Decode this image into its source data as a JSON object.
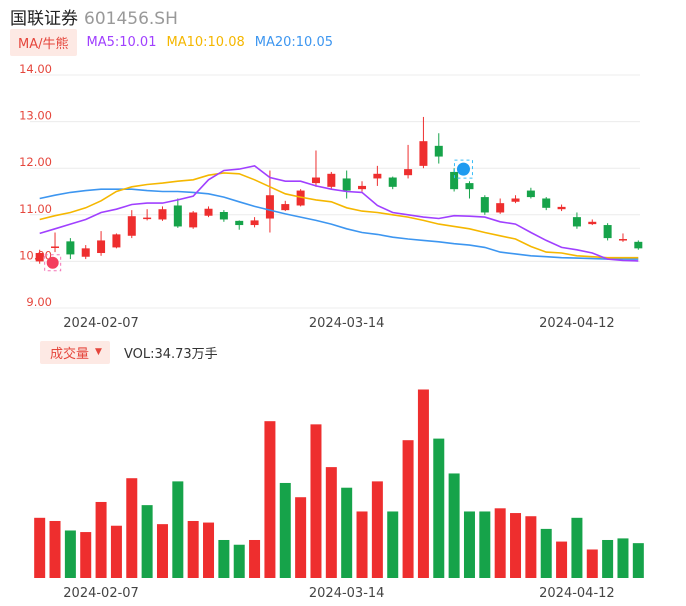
{
  "header": {
    "name": "国联证券",
    "code": "601456.SH"
  },
  "ma_legend": {
    "tag": "MA/牛熊",
    "items": [
      {
        "text": "MA5:10.01",
        "color": "#a040ff"
      },
      {
        "text": "MA10:10.08",
        "color": "#f5b700"
      },
      {
        "text": "MA20:10.05",
        "color": "#3d96f0"
      }
    ]
  },
  "volume_legend": {
    "tag": "成交量",
    "caret": "▼",
    "text": "VOL:34.73万手"
  },
  "colors": {
    "up": "#ee2e2e",
    "down": "#16a34a",
    "grid": "#ececec",
    "axis_label": "#e5463c"
  },
  "icons": [
    "bull-marker-icon",
    "bear-marker-icon"
  ],
  "chart_data": [
    {
      "type": "candlestick",
      "y_ticks": [
        "14.00",
        "13.00",
        "12.00",
        "11.00",
        "10.00",
        "9.00"
      ],
      "ylim": [
        9,
        14
      ],
      "x_tick_labels": [
        {
          "index": 4,
          "label": "2024-02-07"
        },
        {
          "index": 20,
          "label": "2024-03-14"
        },
        {
          "index": 35,
          "label": "2024-04-12"
        }
      ],
      "candles": [
        {
          "o": 10.0,
          "c": 10.18,
          "h": 10.25,
          "l": 9.95
        },
        {
          "o": 10.3,
          "c": 10.32,
          "h": 10.62,
          "l": 10.2
        },
        {
          "o": 10.43,
          "c": 10.15,
          "h": 10.5,
          "l": 10.05
        },
        {
          "o": 10.1,
          "c": 10.28,
          "h": 10.35,
          "l": 10.05
        },
        {
          "o": 10.18,
          "c": 10.45,
          "h": 10.65,
          "l": 10.12
        },
        {
          "o": 10.3,
          "c": 10.58,
          "h": 10.6,
          "l": 10.28
        },
        {
          "o": 10.55,
          "c": 10.97,
          "h": 11.1,
          "l": 10.5
        },
        {
          "o": 10.92,
          "c": 10.94,
          "h": 11.12,
          "l": 10.88
        },
        {
          "o": 10.9,
          "c": 11.12,
          "h": 11.18,
          "l": 10.87
        },
        {
          "o": 11.2,
          "c": 10.75,
          "h": 11.35,
          "l": 10.72
        },
        {
          "o": 10.73,
          "c": 11.05,
          "h": 11.08,
          "l": 10.7
        },
        {
          "o": 10.98,
          "c": 11.13,
          "h": 11.18,
          "l": 10.95
        },
        {
          "o": 11.06,
          "c": 10.9,
          "h": 11.1,
          "l": 10.85
        },
        {
          "o": 10.87,
          "c": 10.78,
          "h": 10.88,
          "l": 10.68
        },
        {
          "o": 10.78,
          "c": 10.88,
          "h": 10.95,
          "l": 10.73
        },
        {
          "o": 10.92,
          "c": 11.42,
          "h": 11.95,
          "l": 10.62
        },
        {
          "o": 11.1,
          "c": 11.23,
          "h": 11.3,
          "l": 11.08
        },
        {
          "o": 11.2,
          "c": 11.52,
          "h": 11.55,
          "l": 11.18
        },
        {
          "o": 11.68,
          "c": 11.8,
          "h": 12.38,
          "l": 11.6
        },
        {
          "o": 11.6,
          "c": 11.88,
          "h": 11.92,
          "l": 11.55
        },
        {
          "o": 11.78,
          "c": 11.52,
          "h": 11.95,
          "l": 11.35
        },
        {
          "o": 11.55,
          "c": 11.62,
          "h": 11.72,
          "l": 11.5
        },
        {
          "o": 11.78,
          "c": 11.88,
          "h": 12.05,
          "l": 11.62
        },
        {
          "o": 11.8,
          "c": 11.6,
          "h": 11.82,
          "l": 11.55
        },
        {
          "o": 11.85,
          "c": 11.98,
          "h": 12.5,
          "l": 11.78
        },
        {
          "o": 12.05,
          "c": 12.58,
          "h": 13.1,
          "l": 12.0
        },
        {
          "o": 12.48,
          "c": 12.25,
          "h": 12.75,
          "l": 12.1
        },
        {
          "o": 11.92,
          "c": 11.55,
          "h": 12.0,
          "l": 11.5
        },
        {
          "o": 11.68,
          "c": 11.55,
          "h": 11.72,
          "l": 11.35
        },
        {
          "o": 11.38,
          "c": 11.05,
          "h": 11.42,
          "l": 11.0
        },
        {
          "o": 11.05,
          "c": 11.25,
          "h": 11.35,
          "l": 11.02
        },
        {
          "o": 11.28,
          "c": 11.35,
          "h": 11.42,
          "l": 11.25
        },
        {
          "o": 11.52,
          "c": 11.38,
          "h": 11.58,
          "l": 11.35
        },
        {
          "o": 11.35,
          "c": 11.15,
          "h": 11.38,
          "l": 11.1
        },
        {
          "o": 11.12,
          "c": 11.17,
          "h": 11.22,
          "l": 11.08
        },
        {
          "o": 10.95,
          "c": 10.75,
          "h": 11.05,
          "l": 10.7
        },
        {
          "o": 10.8,
          "c": 10.85,
          "h": 10.9,
          "l": 10.78
        },
        {
          "o": 10.78,
          "c": 10.5,
          "h": 10.82,
          "l": 10.45
        },
        {
          "o": 10.45,
          "c": 10.48,
          "h": 10.6,
          "l": 10.42
        },
        {
          "o": 10.42,
          "c": 10.28,
          "h": 10.45,
          "l": 10.25
        }
      ],
      "ma5": [
        10.6,
        10.7,
        10.8,
        10.9,
        11.05,
        11.12,
        11.22,
        11.25,
        11.25,
        11.32,
        11.4,
        11.75,
        11.95,
        11.98,
        12.05,
        11.8,
        11.72,
        11.72,
        11.62,
        11.55,
        11.5,
        11.48,
        11.2,
        11.05,
        11.0,
        10.95,
        10.92,
        10.98,
        10.97,
        10.95,
        10.85,
        10.8,
        10.62,
        10.45,
        10.3,
        10.25,
        10.18,
        10.05,
        10.02,
        10.01
      ],
      "ma10": [
        10.9,
        10.98,
        11.05,
        11.15,
        11.3,
        11.5,
        11.6,
        11.65,
        11.68,
        11.72,
        11.75,
        11.85,
        11.9,
        11.88,
        11.75,
        11.6,
        11.45,
        11.38,
        11.32,
        11.28,
        11.15,
        11.08,
        11.05,
        11.0,
        10.95,
        10.88,
        10.8,
        10.75,
        10.7,
        10.62,
        10.55,
        10.48,
        10.32,
        10.2,
        10.18,
        10.12,
        10.1,
        10.08,
        10.08,
        10.08
      ],
      "ma20": [
        11.35,
        11.42,
        11.48,
        11.52,
        11.55,
        11.55,
        11.55,
        11.52,
        11.5,
        11.5,
        11.48,
        11.45,
        11.38,
        11.28,
        11.18,
        11.1,
        11.02,
        10.95,
        10.88,
        10.8,
        10.7,
        10.62,
        10.58,
        10.52,
        10.48,
        10.45,
        10.42,
        10.38,
        10.35,
        10.3,
        10.2,
        10.16,
        10.12,
        10.1,
        10.08,
        10.07,
        10.06,
        10.05,
        10.05,
        10.05
      ]
    },
    {
      "type": "bar",
      "series_name": "成交量",
      "x_tick_labels": [
        {
          "index": 4,
          "label": "2024-02-07"
        },
        {
          "index": 20,
          "label": "2024-03-14"
        },
        {
          "index": 35,
          "label": "2024-04-12"
        }
      ],
      "values": [
        38,
        36,
        30,
        29,
        48,
        33,
        63,
        46,
        34,
        61,
        36,
        35,
        24,
        21,
        24,
        99,
        60,
        51,
        97,
        70,
        57,
        42,
        61,
        42,
        87,
        119,
        88,
        66,
        42,
        42,
        44,
        41,
        39,
        31,
        23,
        38,
        18,
        24,
        25,
        22
      ],
      "up": [
        true,
        true,
        false,
        true,
        true,
        true,
        true,
        false,
        true,
        false,
        true,
        true,
        false,
        false,
        true,
        true,
        false,
        true,
        true,
        true,
        false,
        true,
        true,
        false,
        true,
        true,
        false,
        false,
        false,
        false,
        true,
        true,
        true,
        false,
        true,
        false,
        true,
        false,
        false,
        false
      ]
    }
  ]
}
